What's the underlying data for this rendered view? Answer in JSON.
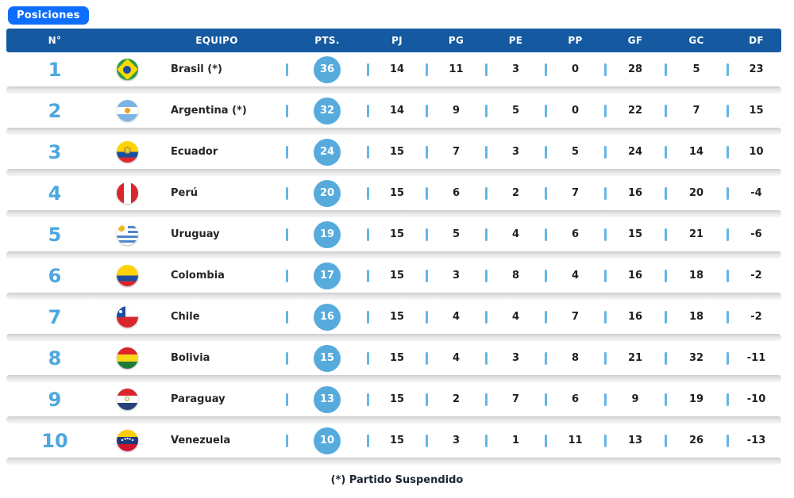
{
  "badge": {
    "label": "Posiciones"
  },
  "footnote": "(*) Partido Suspendido",
  "table": {
    "headers": [
      "N°",
      "EQUIPO",
      "PTS.",
      "PJ",
      "PG",
      "PE",
      "PP",
      "GF",
      "GC",
      "DF"
    ],
    "rows": [
      {
        "rank": "1",
        "flag": "brazil",
        "team": "Brasil (*)",
        "pts": "36",
        "pj": "14",
        "pg": "11",
        "pe": "3",
        "pp": "0",
        "gf": "28",
        "gc": "5",
        "df": "23"
      },
      {
        "rank": "2",
        "flag": "argentina",
        "team": "Argentina (*)",
        "pts": "32",
        "pj": "14",
        "pg": "9",
        "pe": "5",
        "pp": "0",
        "gf": "22",
        "gc": "7",
        "df": "15"
      },
      {
        "rank": "3",
        "flag": "ecuador",
        "team": "Ecuador",
        "pts": "24",
        "pj": "15",
        "pg": "7",
        "pe": "3",
        "pp": "5",
        "gf": "24",
        "gc": "14",
        "df": "10"
      },
      {
        "rank": "4",
        "flag": "peru",
        "team": "Perú",
        "pts": "20",
        "pj": "15",
        "pg": "6",
        "pe": "2",
        "pp": "7",
        "gf": "16",
        "gc": "20",
        "df": "-4"
      },
      {
        "rank": "5",
        "flag": "uruguay",
        "team": "Uruguay",
        "pts": "19",
        "pj": "15",
        "pg": "5",
        "pe": "4",
        "pp": "6",
        "gf": "15",
        "gc": "21",
        "df": "-6"
      },
      {
        "rank": "6",
        "flag": "colombia",
        "team": "Colombia",
        "pts": "17",
        "pj": "15",
        "pg": "3",
        "pe": "8",
        "pp": "4",
        "gf": "16",
        "gc": "18",
        "df": "-2"
      },
      {
        "rank": "7",
        "flag": "chile",
        "team": "Chile",
        "pts": "16",
        "pj": "15",
        "pg": "4",
        "pe": "4",
        "pp": "7",
        "gf": "16",
        "gc": "18",
        "df": "-2"
      },
      {
        "rank": "8",
        "flag": "bolivia",
        "team": "Bolivia",
        "pts": "15",
        "pj": "15",
        "pg": "4",
        "pe": "3",
        "pp": "8",
        "gf": "21",
        "gc": "32",
        "df": "-11"
      },
      {
        "rank": "9",
        "flag": "paraguay",
        "team": "Paraguay",
        "pts": "13",
        "pj": "15",
        "pg": "2",
        "pe": "7",
        "pp": "6",
        "gf": "9",
        "gc": "19",
        "df": "-10"
      },
      {
        "rank": "10",
        "flag": "venezuela",
        "team": "Venezuela",
        "pts": "10",
        "pj": "15",
        "pg": "3",
        "pe": "1",
        "pp": "11",
        "gf": "13",
        "gc": "26",
        "df": "-13"
      }
    ]
  },
  "colors": {
    "badge_bg": "#0d6efd",
    "header_bg": "#155aa0",
    "rank_blue": "#4da7df",
    "points_bg": "#56abdc",
    "pipe_blue": "#66b5e6"
  }
}
